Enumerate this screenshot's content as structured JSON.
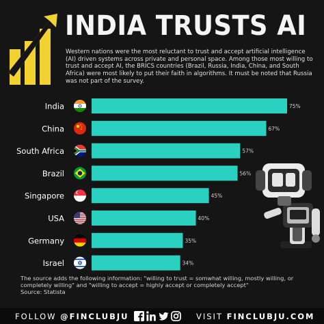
{
  "header": {
    "title": "INDIA TRUSTS AI",
    "subtitle": "Western nations were the most reluctant to trust and accept artificial intelligence (AI) driven systems across private and personal space.  Among those most willing to trust and accept AI, the BRICS countries (Brazil, Russia, India, China, and South Africa) were most likely to put their faith in algorithms. It must be noted that Russia was not part of the survey."
  },
  "colors": {
    "bar": "#2ad1c1",
    "background": "#151515",
    "logo": "#f2d230"
  },
  "chart_data": {
    "type": "bar",
    "orientation": "horizontal",
    "categories": [
      "India",
      "China",
      "South Africa",
      "Brazil",
      "Singapore",
      "USA",
      "Germany",
      "Israel"
    ],
    "values": [
      75,
      67,
      57,
      56,
      45,
      40,
      35,
      34
    ],
    "value_labels": [
      "75%",
      "67%",
      "57%",
      "56%",
      "45%",
      "40%",
      "35%",
      "34%"
    ],
    "flags": [
      "india-flag-icon",
      "china-flag-icon",
      "south-africa-flag-icon",
      "brazil-flag-icon",
      "singapore-flag-icon",
      "usa-flag-icon",
      "germany-flag-icon",
      "israel-flag-icon"
    ],
    "xlim": [
      0,
      100
    ],
    "grid": false
  },
  "footnote": {
    "text": "The source adds the following information: \"willing to trust = somwhat willing, mostly willing, or completely willing\" and \"willing to accept = highly accept or completely accept\"",
    "source": "Source: Statista"
  },
  "footer": {
    "follow_label": "FOLLOW",
    "follow_handle": "@FINCLUBJU",
    "visit_label": "VISIT",
    "visit_url": "FINCLUBJU.COM",
    "social_icons": [
      "facebook-icon",
      "linkedin-icon",
      "twitter-icon",
      "instagram-icon"
    ]
  }
}
